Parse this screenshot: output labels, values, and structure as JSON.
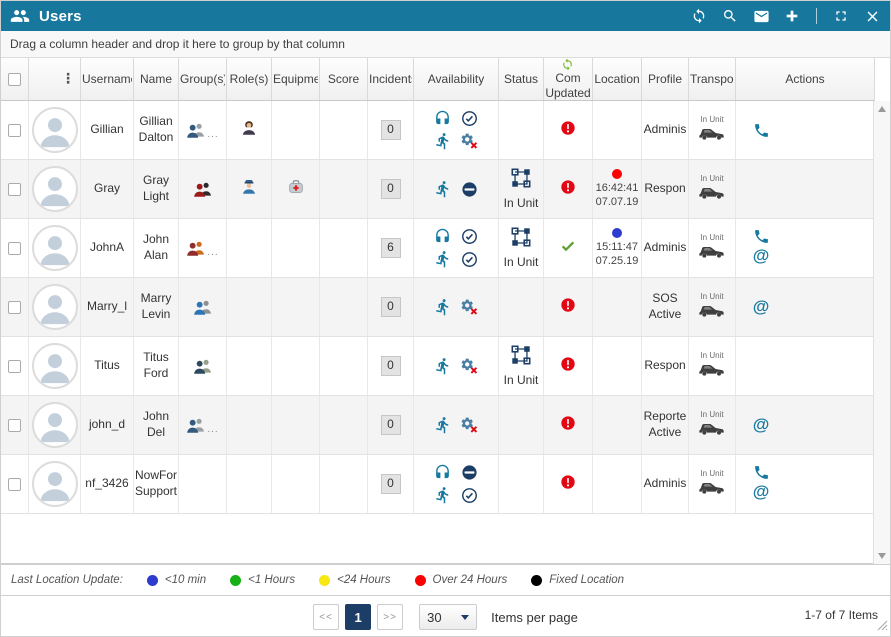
{
  "titlebar": {
    "title": "Users",
    "logo_icon": "users-icon",
    "actions": [
      {
        "name": "refresh",
        "icon": "refresh-icon"
      },
      {
        "name": "search",
        "icon": "search-icon"
      },
      {
        "name": "message",
        "icon": "envelope-icon"
      },
      {
        "name": "add",
        "icon": "plus-icon"
      },
      {
        "name": "maximize",
        "icon": "expand-icon"
      },
      {
        "name": "close",
        "icon": "close-icon"
      }
    ]
  },
  "group_bar": {
    "text": "Drag a column header and drop it here to group by that column"
  },
  "colors": {
    "titlebar_bg": "#17779d",
    "accent_teal": "#1779a0",
    "navy": "#1c3e66",
    "alert_red": "#e30613",
    "ok_green": "#5c9e31"
  },
  "table": {
    "row_menu_glyph": "⋮",
    "columns": [
      {
        "key": "select",
        "label": ""
      },
      {
        "key": "avatar",
        "label": ""
      },
      {
        "key": "username",
        "label": "Username"
      },
      {
        "key": "name",
        "label": "Name"
      },
      {
        "key": "groups",
        "label": "Group(s)"
      },
      {
        "key": "roles",
        "label": "Role(s)"
      },
      {
        "key": "equipment",
        "label": "Equipment"
      },
      {
        "key": "score",
        "label": "Score"
      },
      {
        "key": "incidents",
        "label": "Incidents"
      },
      {
        "key": "availability",
        "label": "Availability"
      },
      {
        "key": "status",
        "label": "Status"
      },
      {
        "key": "com_updated",
        "label": "Com Updated",
        "icon": "sync-green-icon"
      },
      {
        "key": "location",
        "label": "Location"
      },
      {
        "key": "profile",
        "label": "Profile"
      },
      {
        "key": "transport",
        "label": "Transport"
      },
      {
        "key": "actions",
        "label": "Actions"
      }
    ],
    "rows": [
      {
        "username": "Gillian",
        "name": "Gillian Dalton",
        "groups": {
          "icon": "team-icon",
          "front": "#33597e",
          "back": "#9aa0a6",
          "more": true
        },
        "role": "person-bust-icon",
        "equipment": null,
        "score": "",
        "incidents": "0",
        "availability": {
          "headset": "check",
          "runner": "gearx"
        },
        "status": "",
        "com_updated": "alert",
        "location": null,
        "profile": "Adminis",
        "transport": "In Unit",
        "actions": {
          "phone": true,
          "email": false
        }
      },
      {
        "username": "Gray",
        "name": "Gray Light",
        "groups": {
          "icon": "team-icon",
          "front": "#9b1b1b",
          "back": "#2b2b2b",
          "more": false
        },
        "role": "police-officer-icon",
        "equipment": "medical-bag-icon",
        "score": "",
        "incidents": "0",
        "availability": {
          "runner": "blocked"
        },
        "status": "In Unit",
        "com_updated": "alert",
        "location": {
          "dot_color": "#ff0000",
          "time": "16:42:41",
          "date": "07.07.19"
        },
        "profile": "Respon",
        "transport": "In Unit",
        "actions": {
          "phone": false,
          "email": false
        }
      },
      {
        "username": "JohnA",
        "name": "John Alan",
        "groups": {
          "icon": "team-icon",
          "front": "#8f2c2c",
          "back": "#c96a1e",
          "more": true
        },
        "role": null,
        "equipment": null,
        "score": "",
        "incidents": "6",
        "availability": {
          "headset": "check",
          "runner": "check"
        },
        "status": "In Unit",
        "com_updated": "ok",
        "location": {
          "dot_color": "#2d3bcf",
          "time": "15:11:47",
          "date": "07.25.19"
        },
        "profile": "Adminis",
        "transport": "In Unit",
        "actions": {
          "phone": true,
          "email": true
        }
      },
      {
        "username": "Marry_l",
        "name": "Marry Levin",
        "groups": {
          "icon": "team-icon",
          "front": "#2e75b6",
          "back": "#8f8f8f",
          "more": false
        },
        "role": null,
        "equipment": null,
        "score": "",
        "incidents": "0",
        "availability": {
          "runner": "gearx"
        },
        "status": "",
        "com_updated": "alert",
        "location": null,
        "profile": "SOS Active",
        "transport": "In Unit",
        "actions": {
          "phone": false,
          "email": true
        }
      },
      {
        "username": "Titus",
        "name": "Titus Ford",
        "groups": {
          "icon": "team-icon",
          "front": "#2f4a5e",
          "back": "#95a089",
          "more": false
        },
        "role": null,
        "equipment": null,
        "score": "",
        "incidents": "0",
        "availability": {
          "runner": "gearx"
        },
        "status": "In Unit",
        "com_updated": "alert",
        "location": null,
        "profile": "Respon",
        "transport": "In Unit",
        "actions": {
          "phone": false,
          "email": false
        }
      },
      {
        "username": "john_d",
        "name": "John Del",
        "groups": {
          "icon": "team-icon",
          "front": "#33597e",
          "back": "#9aa0a6",
          "more": true
        },
        "role": null,
        "equipment": null,
        "score": "",
        "incidents": "0",
        "availability": {
          "runner": "gearx"
        },
        "status": "",
        "com_updated": "alert",
        "location": null,
        "profile": "Reporte Active",
        "transport": "In Unit",
        "actions": {
          "phone": false,
          "email": true
        }
      },
      {
        "username": "nf_3426",
        "name": "NowFor Support",
        "groups": null,
        "role": null,
        "equipment": null,
        "score": "",
        "incidents": "0",
        "availability": {
          "headset": "blocked",
          "runner": "check"
        },
        "status": "",
        "com_updated": "alert",
        "location": null,
        "profile": "Adminis",
        "transport": "In Unit",
        "actions": {
          "phone": true,
          "email": true
        }
      }
    ]
  },
  "legend": {
    "label": "Last Location Update:",
    "items": [
      {
        "color": "#2d3bcf",
        "label": "<10 min"
      },
      {
        "color": "#17b117",
        "label": "<1 Hours"
      },
      {
        "color": "#f7e713",
        "label": "<24 Hours"
      },
      {
        "color": "#ff0000",
        "label": "Over 24 Hours"
      },
      {
        "color": "#000000",
        "label": "Fixed Location"
      }
    ]
  },
  "pager": {
    "prev": "<<",
    "page": "1",
    "next": ">>",
    "page_size": "30",
    "items_per_page_label": "Items per page",
    "range_label": "1-7 of 7 Items"
  }
}
